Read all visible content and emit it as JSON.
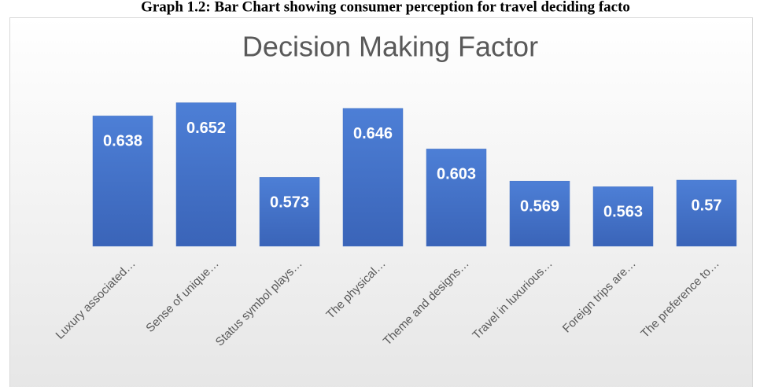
{
  "caption": "Graph 1.2: Bar Chart showing consumer perception for travel deciding facto",
  "chart_data": {
    "type": "bar",
    "title": "Decision Making Factor",
    "categories": [
      "Luxury associated…",
      "Sense of unique…",
      "Status symbol plays…",
      "The physical…",
      "Theme and designs…",
      "Travel in luxurious…",
      "Foreign trips are…",
      "The preference to…"
    ],
    "values": [
      0.638,
      0.652,
      0.573,
      0.646,
      0.603,
      0.569,
      0.563,
      0.57
    ],
    "color": "#4472c4",
    "ylim": [
      0.5,
      0.7
    ]
  }
}
